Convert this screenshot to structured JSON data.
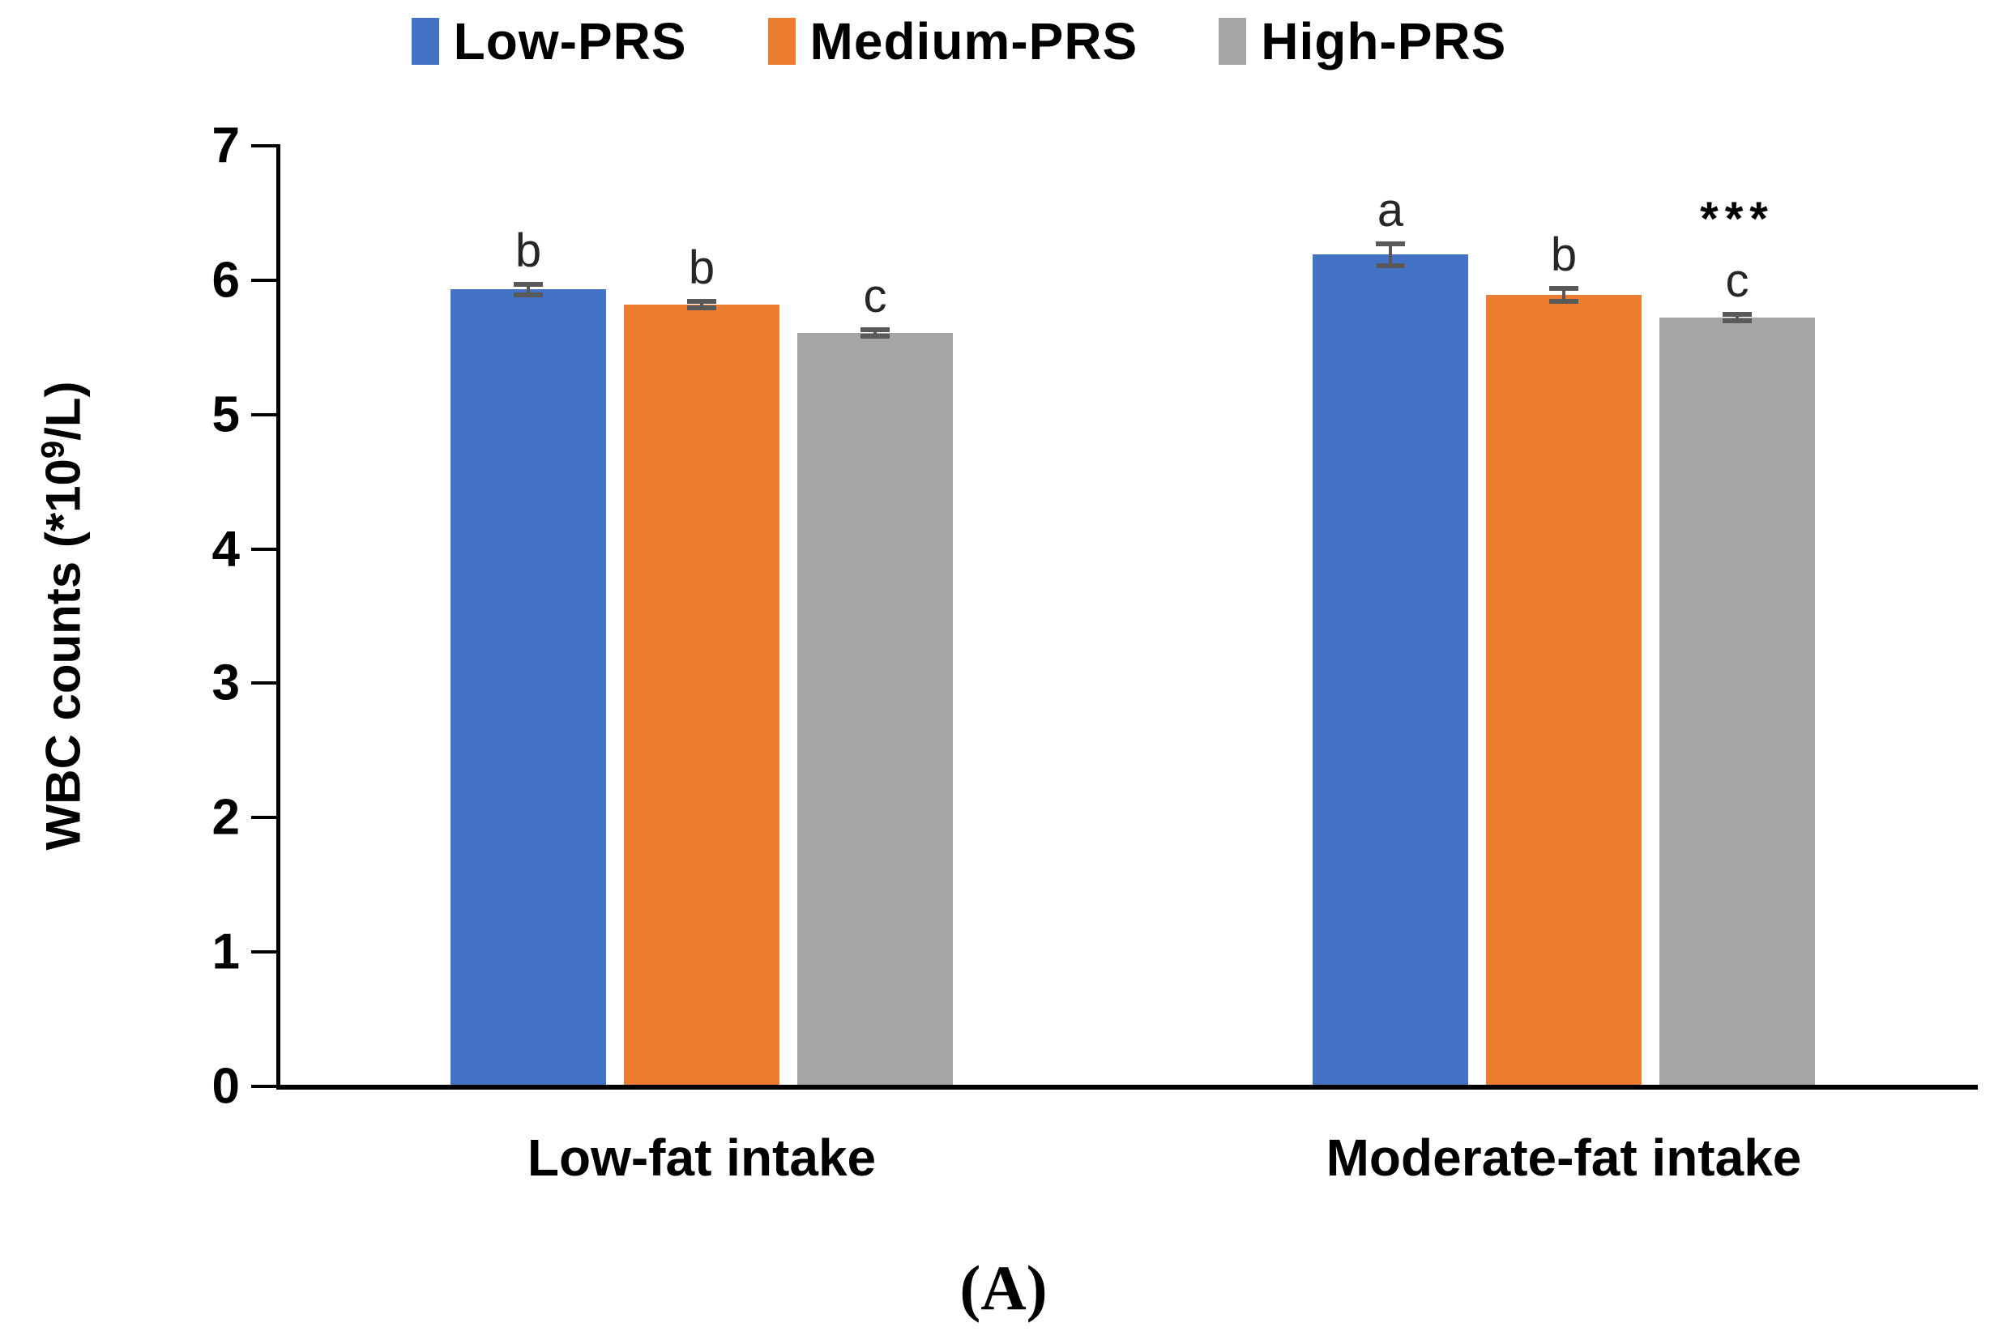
{
  "figure": {
    "caption": "(A)",
    "background": "#ffffff"
  },
  "chart_data": {
    "type": "bar",
    "title": "",
    "xlabel": "",
    "ylabel": "WBC counts (*10⁹/L)",
    "ylabel_parts": {
      "prefix": "WBC counts (*10",
      "superscript": "9",
      "suffix": "/L)"
    },
    "categories": [
      "Low-fat intake",
      "Moderate-fat intake"
    ],
    "series": [
      {
        "name": "Low-PRS",
        "color": "#4472C4",
        "values": [
          5.93,
          6.19
        ],
        "errors": [
          0.04,
          0.08
        ],
        "letters": [
          "b",
          "a"
        ]
      },
      {
        "name": "Medium-PRS",
        "color": "#ED7D31",
        "values": [
          5.82,
          5.89
        ],
        "errors": [
          0.02,
          0.05
        ],
        "letters": [
          "b",
          "b"
        ]
      },
      {
        "name": "High-PRS",
        "color": "#A6A6A6",
        "values": [
          5.61,
          5.72
        ],
        "errors": [
          0.02,
          0.02
        ],
        "letters": [
          "c",
          "c"
        ]
      }
    ],
    "significance": [
      {
        "category_index": 1,
        "series_index": 2,
        "label": "***"
      }
    ],
    "y_axis": {
      "min": 0,
      "max": 7,
      "tick_step": 1,
      "ticks": [
        0,
        1,
        2,
        3,
        4,
        5,
        6,
        7
      ]
    },
    "legend_position": "top",
    "grid": false,
    "error_bar_color": "#595959",
    "axis_color": "#000000"
  }
}
